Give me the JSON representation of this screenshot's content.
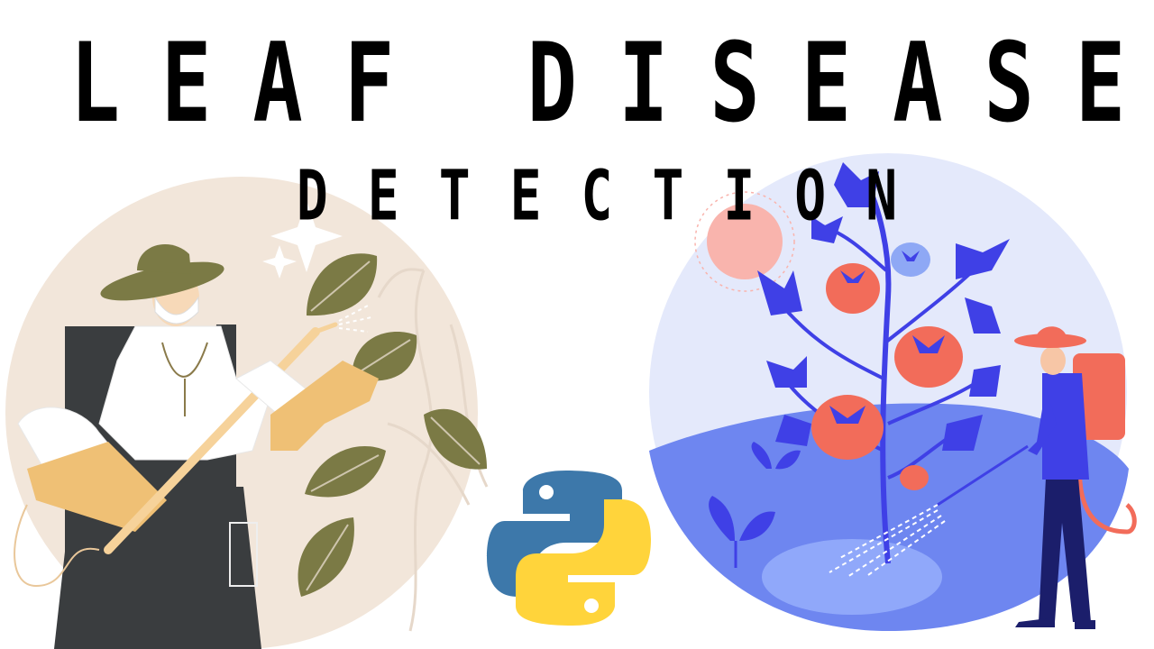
{
  "title": {
    "main": "LEAF DISEASE",
    "sub": "DETECTION"
  },
  "illustrations": {
    "left_scene": "gardener-spraying-leaves",
    "center_logo": "python-logo",
    "right_scene": "farmer-spraying-tomato-plant"
  },
  "colors": {
    "beige_circle": "#f2e6da",
    "leaf_olive": "#7b7a45",
    "glove_tan": "#efc075",
    "dark_vest": "#3a3d3f",
    "blue_circle": "#e4e9fb",
    "plant_blue": "#3f40e6",
    "tomato_red": "#f26c5a",
    "python_blue": "#3d78aa",
    "python_yellow": "#ffd43b"
  }
}
